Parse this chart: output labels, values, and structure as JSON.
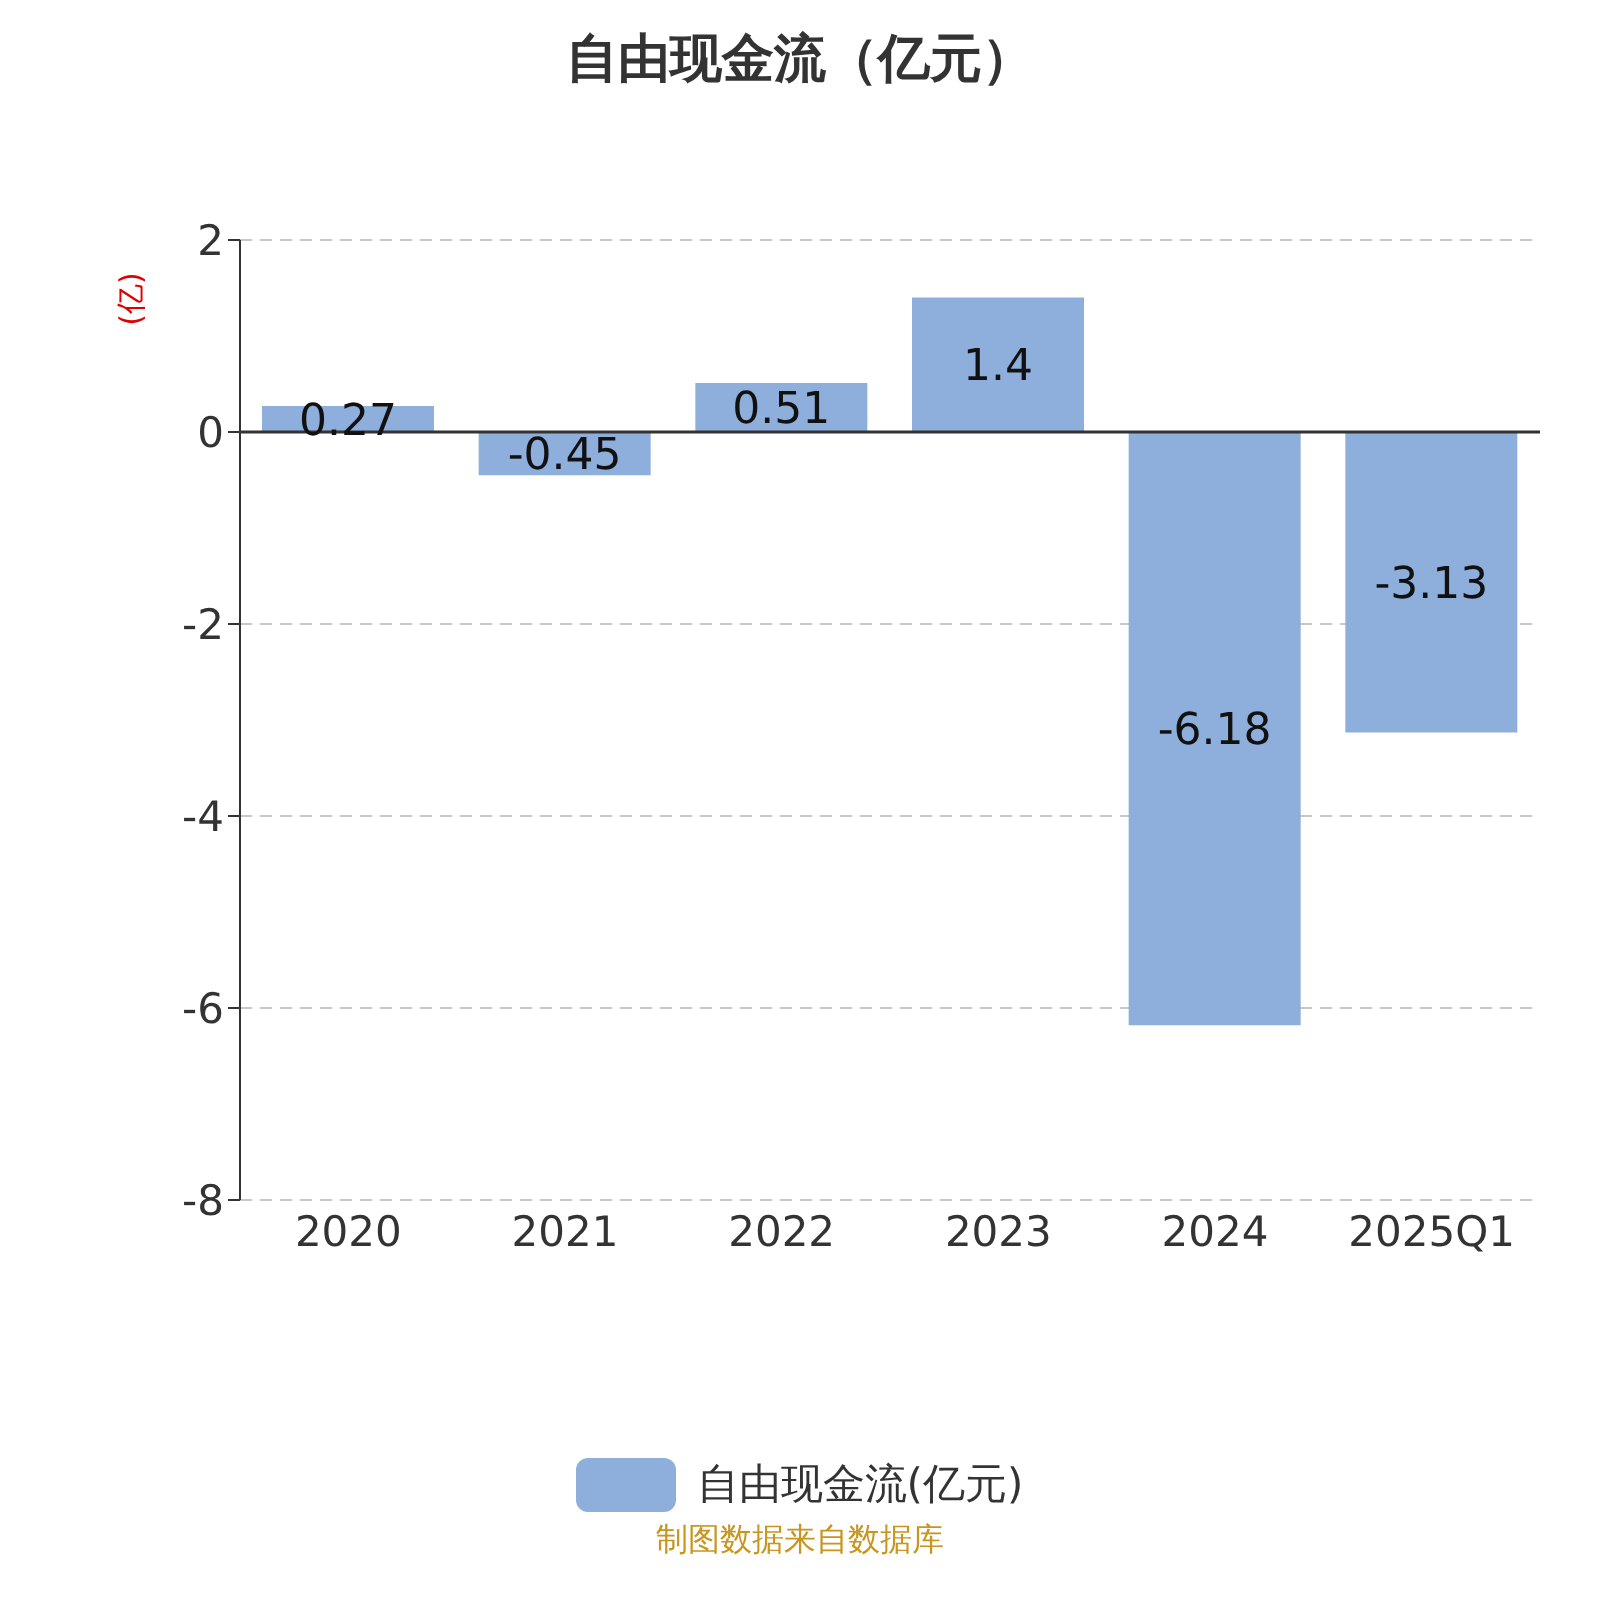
{
  "chart_data": {
    "type": "bar",
    "title": "自由现金流（亿元）",
    "ylabel": "(亿)",
    "categories": [
      "2020",
      "2021",
      "2022",
      "2023",
      "2024",
      "2025Q1"
    ],
    "series": [
      {
        "name": "自由现金流(亿元)",
        "color": "#8eaedb",
        "values": [
          0.27,
          -0.45,
          0.51,
          1.4,
          -6.18,
          -3.13
        ]
      }
    ],
    "ylim": [
      -8,
      2
    ],
    "yticks": [
      -8,
      -6,
      -4,
      -2,
      0,
      2
    ],
    "grid": "y",
    "legend": "bottom",
    "data_labels": true,
    "annotations": [
      "制图数据来自数据库"
    ]
  }
}
